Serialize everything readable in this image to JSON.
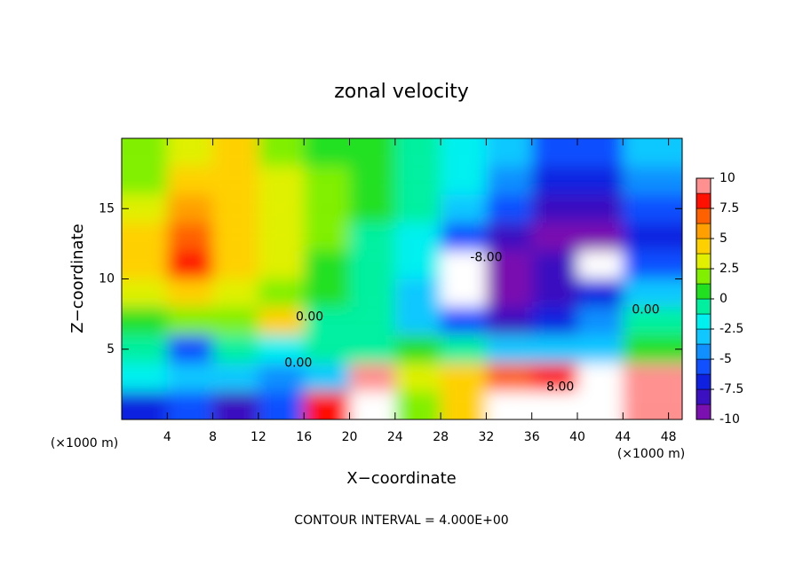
{
  "chart_data": {
    "type": "contour",
    "title": "zonal velocity",
    "xlabel": "X−coordinate",
    "ylabel": "Z−coordinate",
    "x_unit": "(×1000 m)",
    "y_unit": "(×1000 m)",
    "footer": "CONTOUR INTERVAL = 4.000E+00",
    "xlim": [
      0,
      49.2
    ],
    "ylim": [
      0,
      20
    ],
    "xticks": [
      4,
      8,
      12,
      16,
      20,
      24,
      28,
      32,
      36,
      40,
      44,
      48
    ],
    "yticks": [
      5,
      10,
      15
    ],
    "x": [
      2,
      6,
      10,
      14,
      18,
      22,
      26,
      30,
      34,
      38,
      42,
      46
    ],
    "z": [
      19,
      17,
      15,
      13,
      11,
      9,
      7,
      5,
      3,
      1
    ],
    "values": [
      [
        2,
        3,
        4,
        1.5,
        1,
        0.5,
        -1,
        -2,
        -3,
        -5,
        -5,
        -3
      ],
      [
        2,
        5,
        4,
        3,
        1.5,
        0.5,
        -1,
        -2,
        -4,
        -7,
        -7,
        -4
      ],
      [
        3,
        6,
        4.5,
        3,
        2,
        0.5,
        -1,
        -3,
        -5,
        -8,
        -8,
        -5
      ],
      [
        5,
        7.5,
        4.5,
        3,
        2,
        0,
        -2,
        -5,
        -8,
        -9,
        -9,
        -7
      ],
      [
        4,
        8,
        4,
        3,
        1,
        -0.5,
        -2,
        -11,
        -9,
        -8,
        -11,
        -6
      ],
      [
        3,
        5,
        3,
        2.5,
        0.5,
        -0.5,
        -3,
        -11,
        -9,
        -8,
        -7,
        -3
      ],
      [
        1,
        1.5,
        2,
        5,
        0,
        -1,
        -3,
        -6,
        -8,
        -7,
        -4,
        -1
      ],
      [
        0,
        -5,
        -1,
        -2,
        -1,
        0,
        1,
        -1,
        -3,
        -3,
        -3,
        1
      ],
      [
        -2,
        -3,
        -3,
        -4,
        -3,
        10,
        3,
        5,
        7,
        8,
        12,
        9
      ],
      [
        -7,
        -6,
        -8,
        -6,
        8,
        11,
        2,
        4,
        11,
        12,
        14,
        10
      ]
    ],
    "colorbar": {
      "levels": [
        -10,
        -8.75,
        -7.5,
        -6.25,
        -5,
        -3.75,
        -2.5,
        -1.25,
        0,
        1.25,
        2.5,
        3.75,
        5,
        6.25,
        7.5,
        8.75,
        10
      ],
      "colors": [
        "#7a10b0",
        "#3a10c0",
        "#1020e0",
        "#1050ff",
        "#1090ff",
        "#10c8ff",
        "#00f0f0",
        "#00f0a0",
        "#20e020",
        "#80f000",
        "#e0f000",
        "#ffd000",
        "#ffa000",
        "#ff6000",
        "#ff1000",
        "#ff9090"
      ],
      "out_of_range_color": "#ffffff",
      "ticks": [
        10,
        7.5,
        5,
        2.5,
        0,
        -2.5,
        -5,
        -7.5,
        -10
      ]
    },
    "contour_labels": [
      {
        "text": "0.00",
        "x": 16.5,
        "z": 7.3
      },
      {
        "text": "0.00",
        "x": 15.5,
        "z": 4
      },
      {
        "text": "0.00",
        "x": 46,
        "z": 7.8
      },
      {
        "text": "-8.00",
        "x": 32,
        "z": 11.5
      },
      {
        "text": "8.00",
        "x": 38.5,
        "z": 2.3
      }
    ]
  }
}
